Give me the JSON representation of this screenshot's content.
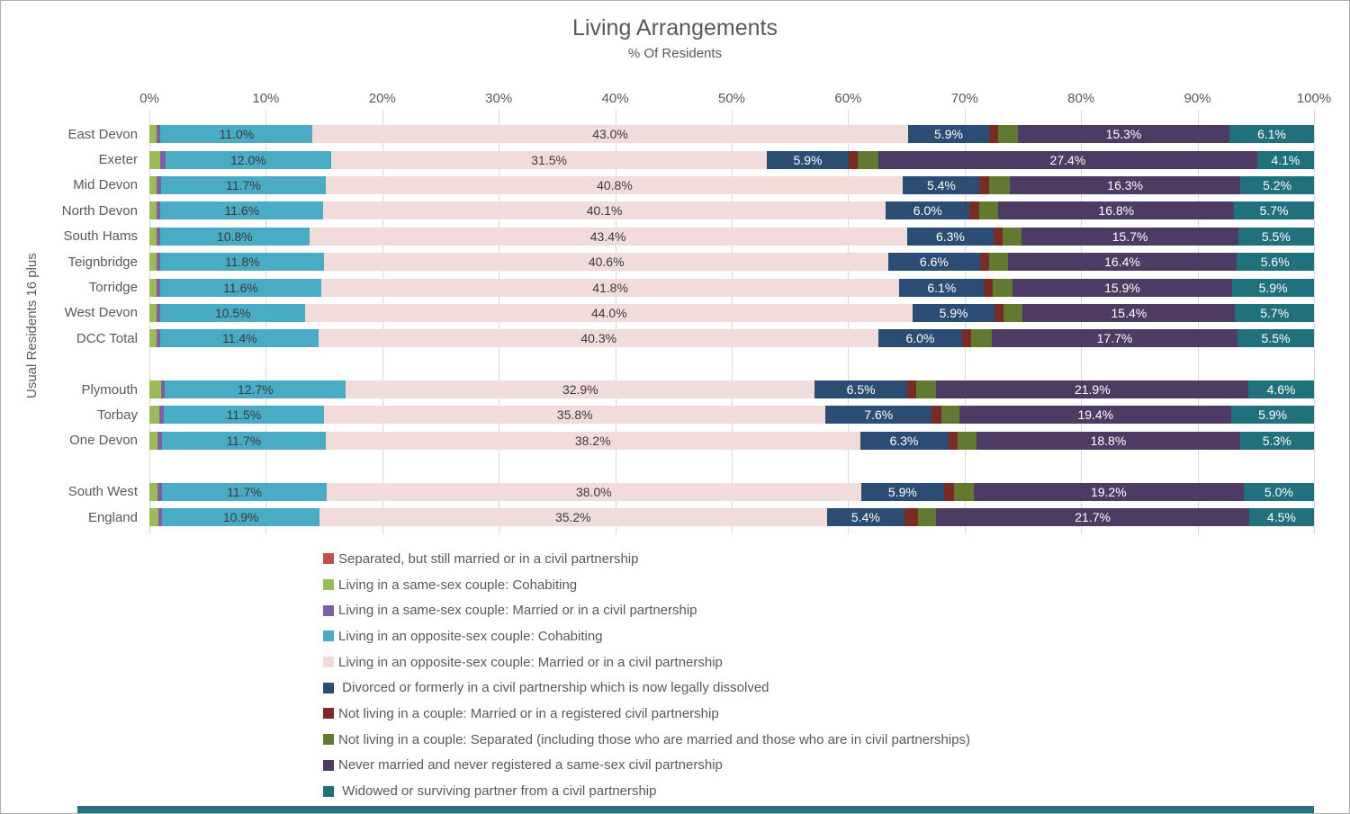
{
  "chart_data": {
    "type": "bar",
    "orientation": "horizontal",
    "stacked": "100%",
    "title": "Living Arrangements",
    "subtitle": "% Of Residents",
    "ylabel": "Usual Residents 16 plus",
    "xlabel": "",
    "x_ticks": [
      "0%",
      "10%",
      "20%",
      "30%",
      "40%",
      "50%",
      "60%",
      "70%",
      "80%",
      "90%",
      "100%"
    ],
    "grid": "vertical-light-gray",
    "legend_position": "bottom-left",
    "categories": [
      "East Devon",
      "Exeter",
      "Mid Devon",
      "North Devon",
      "South Hams",
      "Teignbridge",
      "Torridge",
      "West Devon",
      "DCC Total",
      "Plymouth",
      "Torbay",
      "One Devon",
      "South West",
      "England"
    ],
    "gaps_after_index": [
      8,
      11
    ],
    "series": [
      {
        "name": "Separated, but still married or in a civil partnership",
        "color": "#c0504d",
        "labeled": false,
        "label_color": "#ffffff",
        "values": [
          0,
          0,
          0,
          0,
          0,
          0,
          0,
          0,
          0,
          0,
          0,
          0,
          0,
          0
        ]
      },
      {
        "name": "Living in a same-sex couple: Cohabiting",
        "color": "#9bbb59",
        "labeled": false,
        "label_color": "#3a3a3a",
        "values": [
          0.5,
          0.8,
          0.5,
          0.5,
          0.5,
          0.5,
          0.5,
          0.5,
          0.5,
          0.8,
          0.7,
          0.6,
          0.6,
          0.6
        ]
      },
      {
        "name": "Living in a same-sex couple: Married or in a civil partnership",
        "color": "#7d60a0",
        "labeled": false,
        "label_color": "#ffffff",
        "values": [
          0.3,
          0.35,
          0.3,
          0.3,
          0.3,
          0.3,
          0.3,
          0.3,
          0.3,
          0.3,
          0.3,
          0.3,
          0.3,
          0.3
        ]
      },
      {
        "name": "Living in an opposite-sex couple: Cohabiting",
        "color": "#4aabc5",
        "labeled": true,
        "label_color": "#3a3a3a",
        "values": [
          11.0,
          12.0,
          11.7,
          11.6,
          10.8,
          11.8,
          11.6,
          10.5,
          11.4,
          12.7,
          11.5,
          11.7,
          11.7,
          10.9
        ]
      },
      {
        "name": "Living in an opposite-sex couple: Married or in a civil partnership",
        "color": "#f2dcdb",
        "labeled": true,
        "label_color": "#3a3a3a",
        "values": [
          43.0,
          31.5,
          40.8,
          40.1,
          43.4,
          40.6,
          41.8,
          44.0,
          40.3,
          32.9,
          35.8,
          38.2,
          38.0,
          35.2
        ]
      },
      {
        "name": " Divorced or formerly in a civil partnership which is now legally dissolved",
        "color": "#2b4d73",
        "labeled": true,
        "label_color": "#ffffff",
        "values": [
          5.9,
          5.9,
          5.4,
          6.0,
          6.3,
          6.6,
          6.1,
          5.9,
          6.0,
          6.5,
          7.6,
          6.3,
          5.9,
          5.4
        ]
      },
      {
        "name": "Not living in a couple: Married or in a registered civil partnership",
        "color": "#7b2b25",
        "labeled": false,
        "label_color": "#ffffff",
        "values": [
          0.65,
          0.65,
          0.65,
          0.65,
          0.65,
          0.65,
          0.65,
          0.65,
          0.65,
          0.65,
          0.7,
          0.65,
          0.7,
          0.9
        ]
      },
      {
        "name": "Not living in a couple: Separated (including those who are married and those who are in civil partnerships)",
        "color": "#617931",
        "labeled": false,
        "label_color": "#ffffff",
        "values": [
          1.4,
          1.5,
          1.5,
          1.4,
          1.4,
          1.4,
          1.4,
          1.4,
          1.5,
          1.4,
          1.3,
          1.4,
          1.4,
          1.3
        ]
      },
      {
        "name": "Never married and never registered a same-sex civil partnership",
        "color": "#4d3b63",
        "labeled": true,
        "label_color": "#ffffff",
        "values": [
          15.3,
          27.4,
          16.3,
          16.8,
          15.7,
          16.4,
          15.9,
          15.4,
          17.7,
          21.9,
          19.4,
          18.8,
          19.2,
          21.7
        ]
      },
      {
        "name": " Widowed or surviving partner from a civil partnership",
        "color": "#21707e",
        "labeled": true,
        "label_color": "#ffffff",
        "values": [
          6.1,
          4.1,
          5.2,
          5.7,
          5.5,
          5.6,
          5.9,
          5.7,
          5.5,
          4.6,
          5.9,
          5.3,
          5.0,
          4.5
        ]
      }
    ]
  }
}
